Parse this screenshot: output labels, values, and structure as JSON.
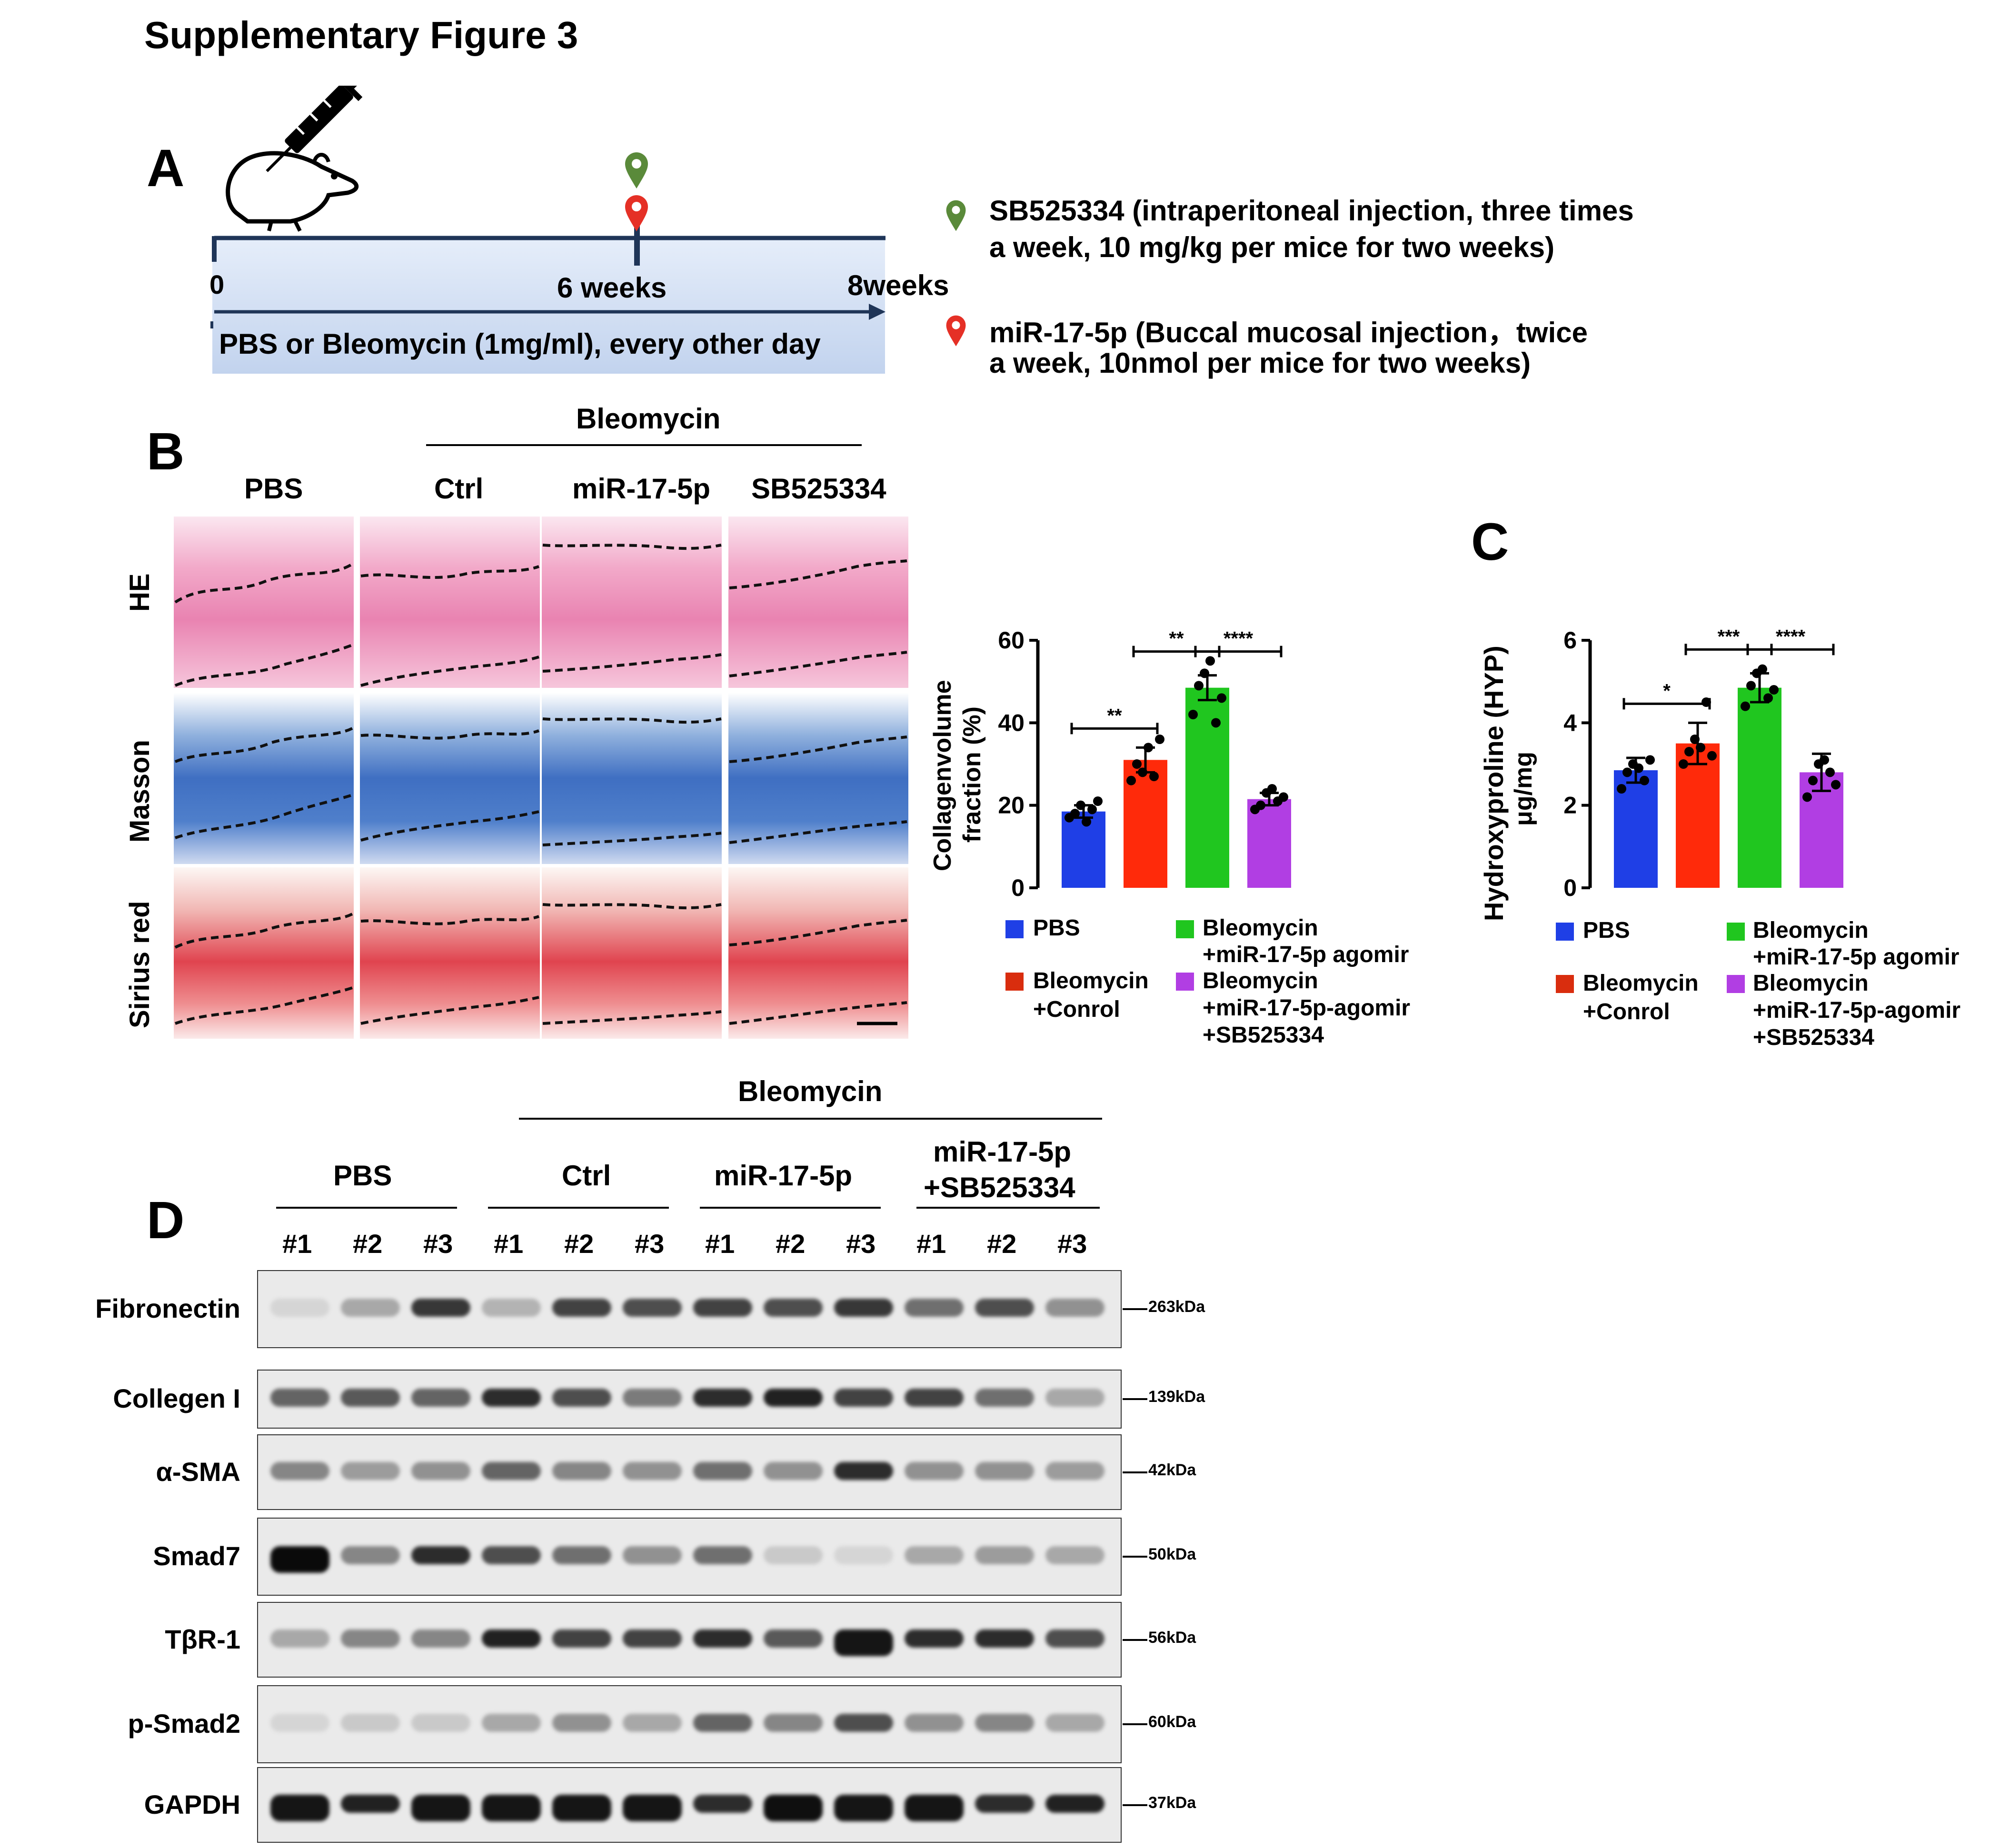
{
  "figure_title": "Supplementary Figure 3",
  "panel_a": {
    "letter": "A",
    "tick_0": "0",
    "tick_6": "6 weeks",
    "tick_8": "8weeks",
    "regimen": "PBS or Bleomycin (1mg/ml), every other day",
    "legend": [
      {
        "color": "#5a8a3a",
        "line1": "SB525334 (intraperitoneal injection, three times",
        "line2": "a week, 10 mg/kg per mice for two weeks)"
      },
      {
        "color": "#e53026",
        "line1": "miR-17-5p (Buccal mucosal injection，twice",
        "line2": "a week, 10nmol per mice for two weeks)"
      }
    ]
  },
  "panel_b": {
    "letter": "B",
    "group_header": "Bleomycin",
    "columns": [
      "PBS",
      "Ctrl",
      "miR-17-5p",
      "SB525334"
    ],
    "rows": [
      "HE",
      "Masson",
      "Sirius red"
    ]
  },
  "chart_legend": {
    "pbs": "PBS",
    "ctrl_line1": "Bleomycin",
    "ctrl_line2": "+Conrol",
    "agomir_line1": "Bleomycin",
    "agomir_line2": "+miR-17-5p agomir",
    "sb_line1": "Bleomycin",
    "sb_line2": "+miR-17-5p-agomir",
    "sb_line3": "+SB525334"
  },
  "chart_data": [
    {
      "type": "bar",
      "ylabel_line1": "Collagenvolume",
      "ylabel_line2": "fraction (%)",
      "ylim": [
        0,
        60
      ],
      "yticks": [
        "0",
        "20",
        "40",
        "60"
      ],
      "categories": [
        "PBS",
        "Bleomycin +Conrol",
        "Bleomycin +miR-17-5p agomir",
        "Bleomycin +miR-17-5p-agomir +SB525334"
      ],
      "values": [
        18.5,
        31,
        48.5,
        21.5
      ],
      "errors": [
        1.5,
        3,
        3,
        1.5
      ],
      "colors": [
        "#1f3fe6",
        "#ff2a0a",
        "#20c61f",
        "#b13ee3"
      ],
      "points": [
        [
          17,
          18,
          20,
          16,
          19,
          21
        ],
        [
          26,
          30,
          28,
          34,
          27,
          36
        ],
        [
          42,
          49,
          52,
          55,
          40,
          46
        ],
        [
          19,
          20,
          23,
          24,
          21,
          22
        ]
      ],
      "significance": [
        {
          "from": 0,
          "to": 1,
          "label": "**"
        },
        {
          "from": 1,
          "to": 2,
          "label": "**"
        },
        {
          "from": 2,
          "to": 3,
          "label": "****"
        }
      ]
    },
    {
      "type": "bar",
      "letter": "C",
      "ylabel_line1": "Hydroxyproline (HYP)",
      "ylabel_line2": "μg/mg",
      "ylim": [
        0,
        6
      ],
      "yticks": [
        "0",
        "2",
        "4",
        "6"
      ],
      "categories": [
        "PBS",
        "Bleomycin +Conrol",
        "Bleomycin +miR-17-5p agomir",
        "Bleomycin +miR-17-5p-agomir +SB525334"
      ],
      "values": [
        2.85,
        3.5,
        4.85,
        2.8
      ],
      "errors": [
        0.3,
        0.5,
        0.35,
        0.45
      ],
      "colors": [
        "#1f3fe6",
        "#ff2a0a",
        "#20c61f",
        "#b13ee3"
      ],
      "points": [
        [
          2.4,
          2.8,
          3.0,
          2.9,
          2.6,
          3.1
        ],
        [
          3.0,
          3.3,
          3.6,
          3.4,
          4.5,
          3.2
        ],
        [
          4.4,
          4.9,
          5.2,
          5.3,
          4.6,
          4.8
        ],
        [
          2.2,
          2.6,
          3.0,
          3.1,
          2.8,
          2.5
        ]
      ],
      "significance": [
        {
          "from": 0,
          "to": 1,
          "label": "*"
        },
        {
          "from": 1,
          "to": 2,
          "label": "***"
        },
        {
          "from": 2,
          "to": 3,
          "label": "****"
        }
      ]
    }
  ],
  "panel_d": {
    "letter": "D",
    "group_header": "Bleomycin",
    "groups": [
      "PBS",
      "Ctrl",
      "miR-17-5p",
      "miR-17-5p\n+SB525334"
    ],
    "group_line1": [
      "PBS",
      "Ctrl",
      "miR-17-5p",
      "miR-17-5p"
    ],
    "group_line2": [
      "",
      "",
      "",
      "+SB525334"
    ],
    "lane_labels": [
      "#1",
      "#2",
      "#3",
      "#1",
      "#2",
      "#3",
      "#1",
      "#2",
      "#3",
      "#1",
      "#2",
      "#3"
    ],
    "proteins": [
      "Fibronectin",
      "Collegen I",
      "α-SMA",
      "Smad7",
      "TβR-1",
      "p-Smad2",
      "GAPDH"
    ],
    "weights": [
      "263kDa",
      "139kDa",
      "42kDa",
      "50kDa",
      "56kDa",
      "60kDa",
      "37kDa"
    ],
    "band_intensity": [
      [
        0.1,
        0.3,
        0.8,
        0.25,
        0.75,
        0.7,
        0.75,
        0.7,
        0.8,
        0.55,
        0.7,
        0.4
      ],
      [
        0.6,
        0.65,
        0.6,
        0.85,
        0.7,
        0.5,
        0.85,
        0.9,
        0.75,
        0.75,
        0.55,
        0.3
      ],
      [
        0.45,
        0.35,
        0.4,
        0.6,
        0.45,
        0.4,
        0.55,
        0.4,
        0.85,
        0.4,
        0.4,
        0.35
      ],
      [
        1.0,
        0.45,
        0.85,
        0.7,
        0.55,
        0.4,
        0.55,
        0.15,
        0.1,
        0.3,
        0.35,
        0.3
      ],
      [
        0.3,
        0.45,
        0.45,
        0.9,
        0.75,
        0.75,
        0.85,
        0.65,
        0.95,
        0.85,
        0.85,
        0.7
      ],
      [
        0.1,
        0.15,
        0.15,
        0.3,
        0.4,
        0.3,
        0.6,
        0.45,
        0.7,
        0.4,
        0.45,
        0.3
      ],
      [
        0.95,
        0.9,
        0.95,
        0.95,
        0.95,
        0.95,
        0.85,
        0.98,
        0.95,
        0.95,
        0.85,
        0.9
      ]
    ]
  }
}
